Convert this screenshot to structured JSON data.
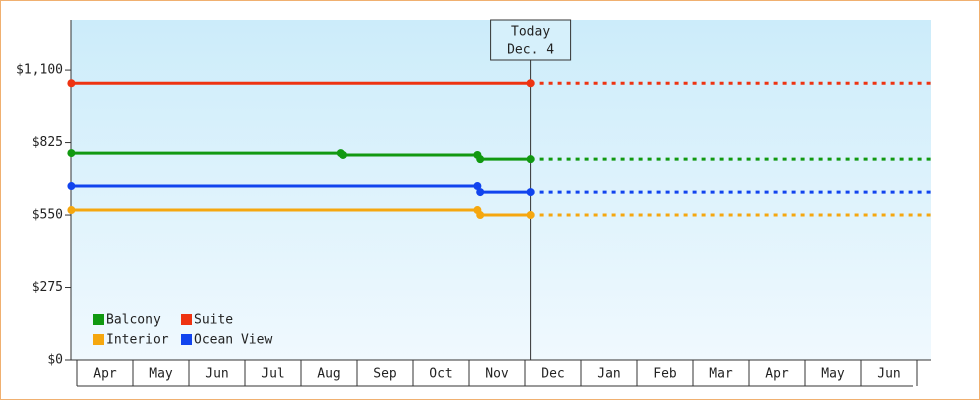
{
  "chart_data": {
    "type": "line",
    "categories": [
      "Apr",
      "May",
      "Jun",
      "Jul",
      "Aug",
      "Sep",
      "Oct",
      "Nov",
      "Dec",
      "Jan",
      "Feb",
      "Mar",
      "Apr",
      "May",
      "Jun"
    ],
    "xlim": [
      -0.1,
      15.3
    ],
    "ylim": [
      0,
      1290
    ],
    "yticks": [
      {
        "value": 0,
        "label": "$0"
      },
      {
        "value": 275,
        "label": "$275"
      },
      {
        "value": 550,
        "label": "$550"
      },
      {
        "value": 825,
        "label": "$825"
      },
      {
        "value": 1100,
        "label": "$1,100"
      }
    ],
    "today": {
      "x": 8.1,
      "label": "Today",
      "date": "Dec. 4"
    },
    "series": [
      {
        "name": "Balcony",
        "color": "#119911",
        "x": [
          -0.1,
          4.71,
          4.75,
          7.15,
          7.2,
          8.1
        ],
        "values": [
          785,
          785,
          778,
          778,
          762,
          762
        ]
      },
      {
        "name": "Suite",
        "color": "#ee3311",
        "x": [
          -0.1,
          8.1
        ],
        "values": [
          1050,
          1050
        ]
      },
      {
        "name": "Interior",
        "color": "#f5a70f",
        "x": [
          -0.1,
          7.15,
          7.2,
          8.1
        ],
        "values": [
          569,
          569,
          550,
          550
        ]
      },
      {
        "name": "Ocean View",
        "color": "#1144ee",
        "x": [
          -0.1,
          7.15,
          7.2,
          8.1
        ],
        "values": [
          660,
          660,
          637,
          637
        ]
      }
    ]
  }
}
